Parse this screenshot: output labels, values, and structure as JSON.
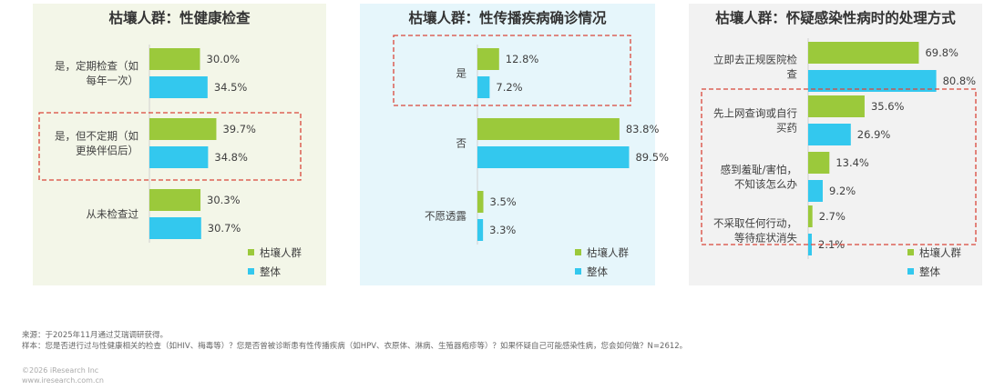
{
  "colors": {
    "group": "#9BC93B",
    "overall": "#33C8EE",
    "highlight": "#D9463A",
    "text": "#404040"
  },
  "legend": {
    "group": "枯壤人群",
    "overall": "整体"
  },
  "chart_data": [
    {
      "type": "bar",
      "title": "枯壤人群：性健康检查",
      "categories": [
        "是，定期检查（如每年一次）",
        "是，但不定期（如更换伴侣后）",
        "从未检查过"
      ],
      "category_lines": [
        [
          "是，定期检查（如",
          "每年一次）"
        ],
        [
          "是，但不定期（如",
          "更换伴侣后）"
        ],
        [
          "从未检查过"
        ]
      ],
      "series": [
        {
          "name": "枯壤人群",
          "values": [
            30.0,
            39.7,
            30.3
          ],
          "labels": [
            "30.0%",
            "39.7%",
            "30.3%"
          ]
        },
        {
          "name": "整体",
          "values": [
            34.5,
            34.8,
            30.7
          ],
          "labels": [
            "34.5%",
            "34.8%",
            "30.7%"
          ]
        }
      ],
      "highlight": [
        1
      ],
      "xlim": [
        0,
        100
      ],
      "legend_position": "bottom-right",
      "background": "#F3F6E8"
    },
    {
      "type": "bar",
      "title": "枯壤人群：性传播疾病确诊情况",
      "categories": [
        "是",
        "否",
        "不愿透露"
      ],
      "category_lines": [
        [
          "是"
        ],
        [
          "否"
        ],
        [
          "不愿透露"
        ]
      ],
      "series": [
        {
          "name": "枯壤人群",
          "values": [
            12.8,
            83.8,
            3.5
          ],
          "labels": [
            "12.8%",
            "83.8%",
            "3.5%"
          ]
        },
        {
          "name": "整体",
          "values": [
            7.2,
            89.5,
            3.3
          ],
          "labels": [
            "7.2%",
            "89.5%",
            "3.3%"
          ]
        }
      ],
      "highlight": [
        0
      ],
      "xlim": [
        0,
        100
      ],
      "legend_position": "bottom-right",
      "background": "#E6F6FB"
    },
    {
      "type": "bar",
      "title": "枯壤人群：怀疑感染性病时的处理方式",
      "categories": [
        "立即去正规医院检查",
        "先上网查询或自行买药",
        "感到羞耻/害怕，不知该怎么办",
        "不采取任何行动，等待症状消失"
      ],
      "category_lines": [
        [
          "立即去正规医院检",
          "查"
        ],
        [
          "先上网查询或自行",
          "买药"
        ],
        [
          "感到羞耻/害怕，",
          "不知该怎么办"
        ],
        [
          "不采取任何行动，",
          "等待症状消失"
        ]
      ],
      "series": [
        {
          "name": "枯壤人群",
          "values": [
            69.8,
            35.6,
            13.4,
            2.7
          ],
          "labels": [
            "69.8%",
            "35.6%",
            "13.4%",
            "2.7%"
          ]
        },
        {
          "name": "整体",
          "values": [
            80.8,
            26.9,
            9.2,
            2.1
          ],
          "labels": [
            "80.8%",
            "26.9%",
            "9.2%",
            "2.1%"
          ]
        }
      ],
      "highlight": [
        1,
        2,
        3
      ],
      "xlim": [
        0,
        100
      ],
      "legend_position": "bottom-right",
      "background": "#F2F2F2"
    }
  ],
  "footnotes": {
    "source": "来源：于2025年11月通过艾瑞调研获得。",
    "sample": "样本：您是否进行过与性健康相关的检查（如HIV、梅毒等）？您是否曾被诊断患有性传播疾病（如HPV、衣原体、淋病、生殖器疱疹等）？如果怀疑自己可能感染性病，您会如何做？N=2612。",
    "copyright": "©2026 iResearch Inc",
    "website": "www.iresearch.com.cn"
  }
}
